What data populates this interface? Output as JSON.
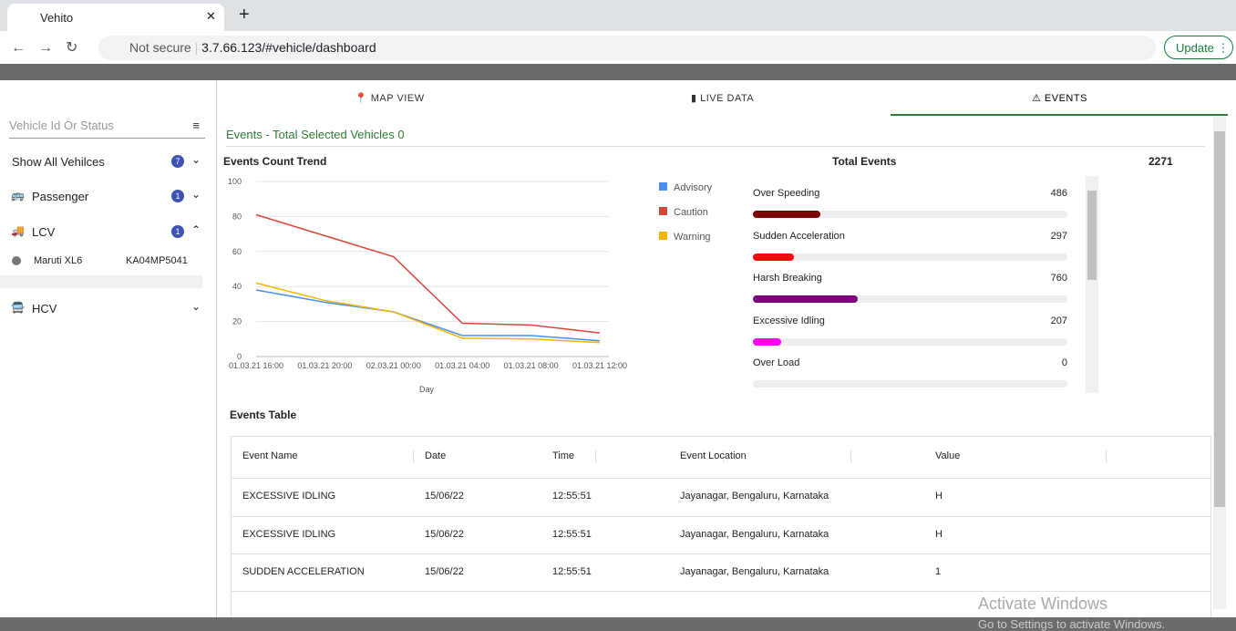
{
  "browser": {
    "tab_title": "Vehito",
    "security": "Not secure",
    "url": "3.7.66.123/#vehicle/dashboard",
    "update": "Update"
  },
  "sidebar": {
    "search_placeholder": "Vehicle Id Or Status",
    "groups": [
      {
        "label": "Show All Vehilces",
        "count": 7
      },
      {
        "label": "Passenger",
        "count": 1
      },
      {
        "label": "LCV",
        "count": 1,
        "vehicles": [
          {
            "name": "Maruti XL6",
            "plate": "KA04MP5041"
          }
        ]
      },
      {
        "label": "HCV"
      }
    ]
  },
  "tabs": [
    "MAP VIEW",
    "LIVE DATA",
    "EVENTS"
  ],
  "heading": "Events -  Total Selected Vehicles 0",
  "chart_data": {
    "type": "line",
    "title": "Events Count Trend",
    "x_label": "Day",
    "categories": [
      "01.03.21 16:00",
      "01.03.21 20:00",
      "02.03.21 00:00",
      "01.03.21 04:00",
      "01.03.21 08:00",
      "01.03.21 12:00"
    ],
    "series": [
      {
        "name": "Advisory",
        "color": "#4a8ff0",
        "values": [
          38,
          31,
          25.5,
          12,
          12,
          9
        ]
      },
      {
        "name": "Caution",
        "color": "#d9453b",
        "values": [
          81,
          69,
          57,
          19,
          18,
          13.5
        ]
      },
      {
        "name": "Warning",
        "color": "#f5b400",
        "values": [
          42,
          32,
          25.5,
          10.5,
          10,
          8
        ]
      }
    ],
    "ylim": [
      0,
      100
    ],
    "yticks": [
      0,
      20,
      40,
      60,
      80,
      100
    ],
    "grid": true
  },
  "total_events": {
    "title": "Total Events",
    "total": 2271,
    "items": [
      {
        "name": "Over Speeding",
        "value": 486,
        "color": "#7b0000"
      },
      {
        "name": "Sudden Acceleration",
        "value": 297,
        "color": "#f50a0a"
      },
      {
        "name": "Harsh Breaking",
        "value": 760,
        "color": "#800080"
      },
      {
        "name": "Excessive Idling",
        "value": 207,
        "color": "#ff00ff"
      },
      {
        "name": "Over Load",
        "value": 0,
        "color": "#888888"
      }
    ]
  },
  "table": {
    "title": "Events Table",
    "headers": [
      "Event Name",
      "Date",
      "Time",
      "Event Location",
      "Value"
    ],
    "rows": [
      [
        "EXCESSIVE IDLING",
        "15/06/22",
        "12:55:51",
        "Jayanagar, Bengaluru, Karnataka",
        "H"
      ],
      [
        "EXCESSIVE IDLING",
        "15/06/22",
        "12:55:51",
        "Jayanagar, Bengaluru, Karnataka",
        "H"
      ],
      [
        "SUDDEN ACCELERATION",
        "15/06/22",
        "12:55:51",
        "Jayanagar, Bengaluru, Karnataka",
        "1"
      ]
    ]
  },
  "watermark": [
    "Activate Windows",
    "Go to Settings to activate Windows."
  ]
}
